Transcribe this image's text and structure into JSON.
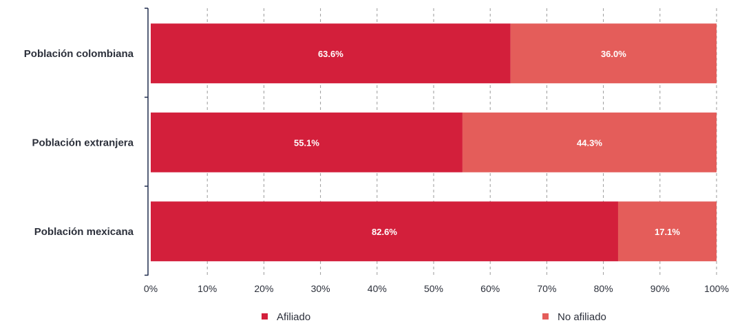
{
  "chart_data": {
    "type": "bar",
    "orientation": "horizontal",
    "stacked": true,
    "categories": [
      "Población colombiana",
      "Población extranjera",
      "Población mexicana"
    ],
    "series": [
      {
        "name": "Afiliado",
        "values": [
          63.6,
          55.1,
          82.6
        ],
        "labels": [
          "63.6%",
          "55.1%",
          "82.6%"
        ],
        "color": "#d31f3b"
      },
      {
        "name": "No afiliado",
        "values": [
          36.0,
          44.3,
          17.1
        ],
        "labels": [
          "36.0%",
          "44.3%",
          "17.1%"
        ],
        "color": "#e45d5a"
      }
    ],
    "xlim": [
      0,
      100
    ],
    "xticks": [
      "0%",
      "10%",
      "20%",
      "30%",
      "40%",
      "50%",
      "60%",
      "70%",
      "80%",
      "90%",
      "100%"
    ],
    "grid": true,
    "legend_position": "bottom"
  }
}
